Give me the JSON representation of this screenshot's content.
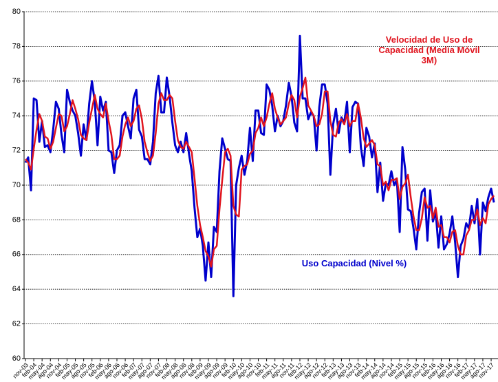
{
  "chart_data": {
    "type": "line",
    "categories": [
      "nov-03",
      null,
      null,
      "feb-04",
      null,
      null,
      "may-04",
      null,
      null,
      "ago-04",
      null,
      null,
      "nov-04",
      null,
      null,
      "feb-05",
      null,
      null,
      "may-05",
      null,
      null,
      "ago-05",
      null,
      null,
      "nov-05",
      null,
      null,
      "feb-06",
      null,
      null,
      "may-06",
      null,
      null,
      "ago-06",
      null,
      null,
      "nov-06",
      null,
      null,
      "feb-07",
      null,
      null,
      "may-07",
      null,
      null,
      "ago-07",
      null,
      null,
      "nov-07",
      null,
      null,
      "feb-08",
      null,
      null,
      "may-08",
      null,
      null,
      "ago-08",
      null,
      null,
      "nov-08",
      null,
      null,
      "feb-09",
      null,
      null,
      "may-09",
      null,
      null,
      "ago-09",
      null,
      null,
      "nov-09",
      null,
      null,
      "feb-10",
      null,
      null,
      "may-10",
      null,
      null,
      "ago-10",
      null,
      null,
      "nov-10",
      null,
      null,
      "feb-11",
      null,
      null,
      "may-11",
      null,
      null,
      "ago-11",
      null,
      null,
      "nov-11",
      null,
      null,
      "feb-12",
      null,
      null,
      "may-12",
      null,
      null,
      "ago-12",
      null,
      null,
      "nov-12",
      null,
      null,
      "feb-13",
      null,
      null,
      "may-13",
      null,
      null,
      "ago-13",
      null,
      null,
      "nov-13",
      null,
      null,
      "feb-14",
      null,
      null,
      "may-14",
      null,
      null,
      "ago-14",
      null,
      null,
      "nov-14",
      null,
      null,
      "feb-15",
      null,
      null,
      "may-15",
      null,
      null,
      "ago-15",
      null,
      null,
      "nov-15",
      null,
      null,
      "feb-16",
      null,
      null,
      "may-16",
      null,
      null,
      "ago-16",
      null,
      null,
      "nov-16",
      null,
      null,
      "feb-17",
      null,
      null,
      "may-17",
      null,
      null,
      "ago-17",
      null,
      null,
      "nov-17",
      null
    ],
    "series": [
      {
        "name": "Uso Capacidad (Nivel %)",
        "color": "#0000cc",
        "width": 3,
        "values": [
          71.3,
          71.6,
          69.7,
          75.0,
          74.9,
          72.5,
          73.7,
          72.2,
          72.3,
          71.9,
          73.2,
          74.8,
          74.4,
          72.9,
          71.9,
          75.5,
          74.8,
          74.3,
          74.0,
          73.0,
          71.7,
          73.5,
          72.6,
          74.7,
          76.0,
          74.8,
          72.3,
          75.1,
          74.3,
          74.8,
          72.0,
          71.9,
          70.7,
          72.0,
          72.3,
          74.0,
          74.2,
          73.4,
          72.7,
          75.0,
          75.5,
          73.2,
          72.8,
          71.5,
          71.5,
          71.2,
          72.5,
          75.3,
          76.3,
          74.2,
          74.2,
          76.2,
          75.1,
          73.6,
          72.3,
          71.9,
          72.5,
          71.9,
          73.0,
          71.8,
          70.8,
          68.7,
          67.0,
          67.5,
          66.5,
          64.5,
          66.7,
          64.7,
          67.6,
          67.3,
          70.8,
          72.7,
          72.1,
          71.5,
          71.4,
          63.6,
          70.0,
          71.0,
          71.7,
          70.6,
          71.4,
          73.3,
          71.4,
          74.3,
          74.3,
          73.0,
          72.9,
          75.8,
          75.5,
          74.6,
          73.1,
          74.0,
          73.4,
          73.7,
          74.6,
          75.9,
          75.1,
          73.6,
          73.1,
          78.6,
          75.0,
          75.0,
          73.8,
          74.2,
          74.0,
          72.0,
          74.5,
          75.8,
          75.8,
          74.7,
          70.6,
          73.5,
          74.4,
          73.0,
          73.9,
          73.6,
          74.8,
          71.9,
          74.5,
          74.8,
          74.7,
          72.2,
          71.1,
          73.3,
          72.8,
          71.6,
          72.4,
          69.6,
          71.3,
          69.1,
          70.1,
          70.0,
          70.8,
          70.0,
          70.3,
          67.3,
          72.2,
          70.9,
          68.6,
          68.5,
          67.5,
          66.3,
          68.4,
          69.6,
          69.8,
          66.8,
          69.7,
          67.9,
          68.5,
          66.4,
          68.2,
          66.3,
          66.6,
          67.2,
          68.2,
          66.7,
          64.7,
          66.5,
          66.9,
          67.8,
          67.5,
          68.8,
          67.8,
          69.2,
          66.0,
          69.0,
          68.5,
          69.3,
          69.8,
          69.0
        ]
      },
      {
        "name": "Velocidad de Uso de Capacidad (Media Móvil 3M)",
        "color": "#e0141e",
        "width": 2.5,
        "values": [
          71.5,
          71.3,
          70.9,
          72.1,
          73.2,
          74.1,
          73.7,
          72.8,
          72.7,
          72.1,
          72.5,
          73.3,
          74.1,
          74.0,
          73.1,
          73.4,
          74.1,
          74.9,
          74.4,
          73.8,
          72.9,
          72.7,
          72.6,
          73.6,
          74.4,
          75.2,
          74.4,
          74.1,
          73.9,
          74.7,
          73.7,
          72.9,
          71.5,
          71.5,
          71.7,
          72.8,
          73.5,
          73.9,
          73.4,
          73.7,
          74.4,
          74.6,
          73.8,
          72.5,
          71.9,
          71.4,
          71.7,
          73.0,
          74.7,
          75.3,
          74.9,
          74.9,
          75.2,
          75.0,
          73.7,
          72.6,
          72.2,
          72.1,
          72.5,
          72.2,
          71.9,
          70.4,
          68.8,
          67.7,
          67.0,
          66.2,
          65.9,
          65.3,
          66.3,
          66.5,
          68.6,
          70.3,
          71.9,
          72.1,
          71.7,
          68.8,
          68.3,
          68.2,
          70.9,
          71.1,
          71.2,
          71.8,
          72.0,
          73.0,
          73.3,
          73.9,
          73.4,
          73.9,
          74.7,
          75.3,
          74.4,
          73.9,
          73.5,
          73.7,
          73.9,
          74.7,
          75.2,
          74.9,
          73.9,
          75.1,
          75.6,
          76.2,
          74.6,
          74.3,
          74.0,
          73.4,
          73.5,
          74.1,
          75.4,
          75.4,
          73.7,
          72.9,
          72.8,
          73.6,
          73.8,
          73.5,
          74.1,
          73.4,
          73.7,
          73.7,
          74.7,
          73.9,
          72.7,
          72.2,
          72.4,
          72.6,
          72.3,
          71.2,
          71.1,
          70.0,
          70.2,
          69.7,
          70.3,
          70.3,
          70.4,
          69.2,
          69.9,
          70.1,
          70.6,
          69.3,
          68.2,
          67.4,
          67.4,
          68.1,
          69.3,
          68.7,
          68.8,
          68.1,
          68.7,
          67.6,
          67.7,
          67.0,
          67.0,
          66.7,
          67.3,
          67.4,
          66.5,
          66.0,
          66.0,
          67.1,
          67.4,
          68.0,
          68.0,
          68.6,
          67.7,
          68.1,
          67.8,
          68.9,
          69.2,
          69.4
        ]
      }
    ],
    "ylim": [
      60,
      80
    ],
    "yticks": [
      60,
      62,
      64,
      66,
      68,
      70,
      72,
      74,
      76,
      78,
      80
    ],
    "grid": true
  }
}
